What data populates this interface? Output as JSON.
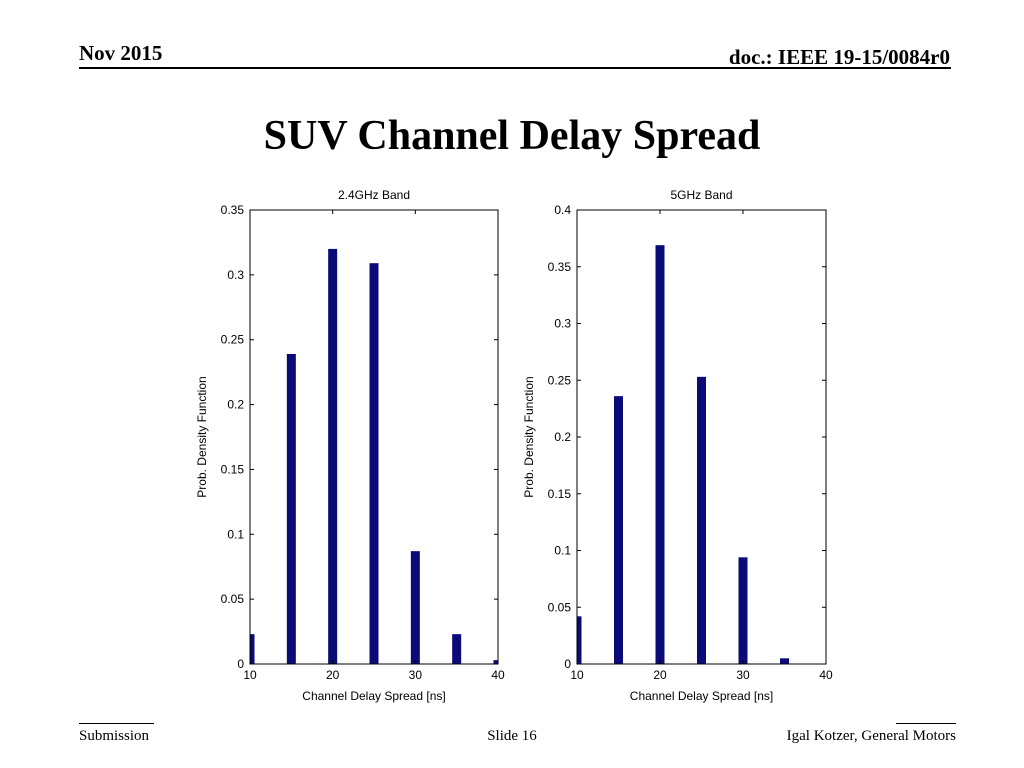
{
  "header": {
    "date": "Nov 2015",
    "doc": "doc.: IEEE 19-15/0084r0"
  },
  "slide": {
    "title": "SUV Channel Delay Spread"
  },
  "footer": {
    "left": "Submission",
    "center": "Slide 16",
    "right": "Igal Kotzer, General Motors"
  },
  "colors": {
    "bar": "#0a0a78",
    "axis": "#000000"
  },
  "chart_data": [
    {
      "type": "bar",
      "title": "2.4GHz Band",
      "xlabel": "Channel Delay Spread [ns]",
      "ylabel": "Prob. Density Function",
      "x": [
        10,
        15,
        20,
        25,
        30,
        35,
        40
      ],
      "values": [
        0.023,
        0.239,
        0.32,
        0.309,
        0.087,
        0.023,
        0.003
      ],
      "xlim": [
        10,
        40
      ],
      "ylim": [
        0,
        0.35
      ],
      "xticks": [
        10,
        20,
        30,
        40
      ],
      "yticks": [
        0,
        0.05,
        0.1,
        0.15,
        0.2,
        0.25,
        0.3,
        0.35
      ],
      "xtick_labels": [
        "10",
        "20",
        "30",
        "40"
      ],
      "ytick_labels": [
        "0",
        "0.05",
        "0.1",
        "0.15",
        "0.2",
        "0.25",
        "0.3",
        "0.35"
      ],
      "grid": false
    },
    {
      "type": "bar",
      "title": "5GHz Band",
      "xlabel": "Channel Delay Spread [ns]",
      "ylabel": "Prob. Density Function",
      "x": [
        10,
        15,
        20,
        25,
        30,
        35,
        40
      ],
      "values": [
        0.042,
        0.236,
        0.369,
        0.253,
        0.094,
        0.005,
        0
      ],
      "xlim": [
        10,
        40
      ],
      "ylim": [
        0,
        0.4
      ],
      "xticks": [
        10,
        20,
        30,
        40
      ],
      "yticks": [
        0,
        0.05,
        0.1,
        0.15,
        0.2,
        0.25,
        0.3,
        0.35,
        0.4
      ],
      "xtick_labels": [
        "10",
        "20",
        "30",
        "40"
      ],
      "ytick_labels": [
        "0",
        "0.05",
        "0.1",
        "0.15",
        "0.2",
        "0.25",
        "0.3",
        "0.35",
        "0.4"
      ],
      "grid": false
    }
  ]
}
